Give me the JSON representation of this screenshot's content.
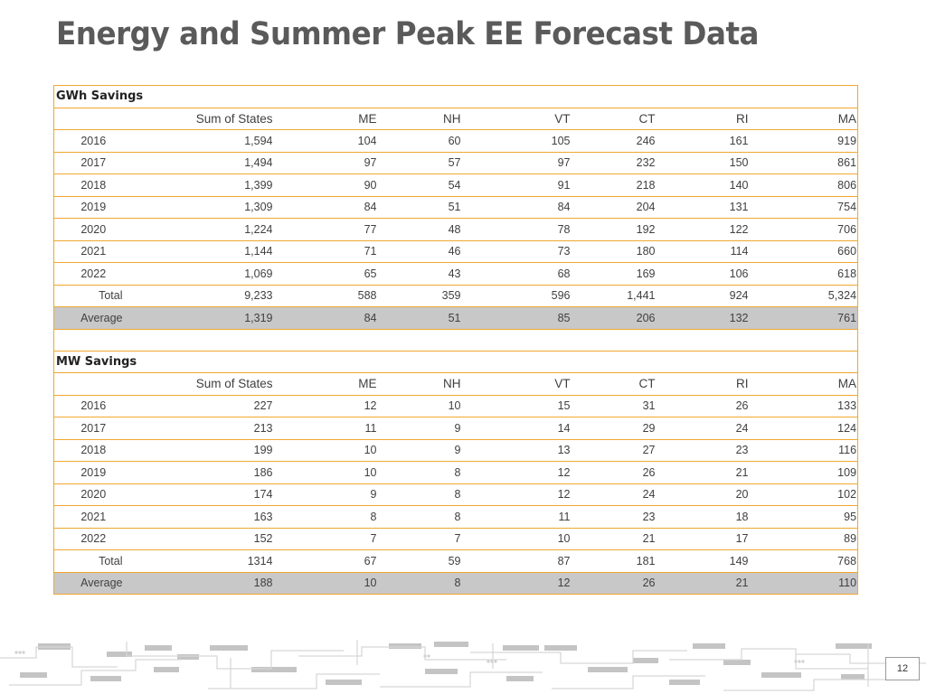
{
  "title": "Energy and Summer Peak EE Forecast Data",
  "page_number": "12",
  "columns": [
    "Sum of States",
    "ME",
    "NH",
    "VT",
    "CT",
    "RI",
    "MA"
  ],
  "gwh": {
    "section_label": "GWh Savings",
    "rows": [
      {
        "label": "2016",
        "cells": [
          "1,594",
          "104",
          "60",
          "105",
          "246",
          "161",
          "919"
        ]
      },
      {
        "label": "2017",
        "cells": [
          "1,494",
          "97",
          "57",
          "97",
          "232",
          "150",
          "861"
        ]
      },
      {
        "label": "2018",
        "cells": [
          "1,399",
          "90",
          "54",
          "91",
          "218",
          "140",
          "806"
        ]
      },
      {
        "label": "2019",
        "cells": [
          "1,309",
          "84",
          "51",
          "84",
          "204",
          "131",
          "754"
        ]
      },
      {
        "label": "2020",
        "cells": [
          "1,224",
          "77",
          "48",
          "78",
          "192",
          "122",
          "706"
        ]
      },
      {
        "label": "2021",
        "cells": [
          "1,144",
          "71",
          "46",
          "73",
          "180",
          "114",
          "660"
        ]
      },
      {
        "label": "2022",
        "cells": [
          "1,069",
          "65",
          "43",
          "68",
          "169",
          "106",
          "618"
        ]
      },
      {
        "label": "Total",
        "cells": [
          "9,233",
          "588",
          "359",
          "596",
          "1,441",
          "924",
          "5,324"
        ]
      },
      {
        "label": "Average",
        "cells": [
          "1,319",
          "84",
          "51",
          "85",
          "206",
          "132",
          "761"
        ]
      }
    ]
  },
  "mw": {
    "section_label": "MW Savings",
    "rows": [
      {
        "label": "2016",
        "cells": [
          "227",
          "12",
          "10",
          "15",
          "31",
          "26",
          "133"
        ]
      },
      {
        "label": "2017",
        "cells": [
          "213",
          "11",
          "9",
          "14",
          "29",
          "24",
          "124"
        ]
      },
      {
        "label": "2018",
        "cells": [
          "199",
          "10",
          "9",
          "13",
          "27",
          "23",
          "116"
        ]
      },
      {
        "label": "2019",
        "cells": [
          "186",
          "10",
          "8",
          "12",
          "26",
          "21",
          "109"
        ]
      },
      {
        "label": "2020",
        "cells": [
          "174",
          "9",
          "8",
          "12",
          "24",
          "20",
          "102"
        ]
      },
      {
        "label": "2021",
        "cells": [
          "163",
          "8",
          "8",
          "11",
          "23",
          "18",
          "95"
        ]
      },
      {
        "label": "2022",
        "cells": [
          "152",
          "7",
          "7",
          "10",
          "21",
          "17",
          "89"
        ]
      },
      {
        "label": "Total",
        "cells": [
          "1314",
          "67",
          "59",
          "87",
          "181",
          "149",
          "768"
        ]
      },
      {
        "label": "Average",
        "cells": [
          "188",
          "10",
          "8",
          "12",
          "26",
          "21",
          "110"
        ]
      }
    ]
  }
}
